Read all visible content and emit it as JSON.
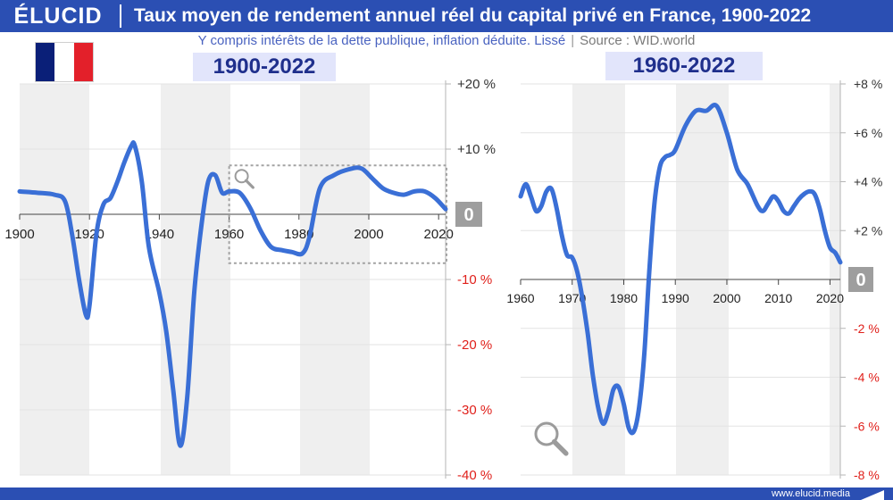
{
  "header": {
    "logo": "ÉLUCID",
    "title": "Taux moyen de rendement annuel réel du capital privé en France, 1900-2022"
  },
  "subtitle": {
    "text": "Y compris intérêts de la dette publique, inflation déduite. Lissé",
    "separator": "|",
    "source": "Source : WID.world"
  },
  "footer": {
    "url": "www.elucid.media"
  },
  "colors": {
    "brand": "#2b4fb3",
    "line": "#3a6fd6",
    "negative_tick": "#e0201b",
    "zero_badge": "#9e9e9e",
    "band": "#efefef"
  },
  "chart_data": [
    {
      "type": "line",
      "label": "1900-2022",
      "x_ticks": [
        "1900",
        "1920",
        "1940",
        "1960",
        "1980",
        "2000",
        "2020"
      ],
      "y_ticks": [
        "+20 %",
        "+10 %",
        "0",
        "-10 %",
        "-20 %",
        "-30 %",
        "-40 %"
      ],
      "xlim": [
        1900,
        2022
      ],
      "ylim": [
        -40,
        20
      ],
      "zero_label": "0",
      "highlight_range": {
        "x": [
          1960,
          2022
        ],
        "y": [
          -7.5,
          7.5
        ]
      },
      "series": [
        {
          "x": [
            1900,
            1905,
            1910,
            1913,
            1915,
            1917,
            1919,
            1920,
            1922,
            1924,
            1926,
            1928,
            1930,
            1932,
            1933,
            1935,
            1937,
            1940,
            1942,
            1944,
            1946,
            1948,
            1950,
            1952,
            1954,
            1956,
            1958,
            1960,
            1963,
            1966,
            1969,
            1972,
            1975,
            1978,
            1981,
            1983,
            1986,
            1990,
            1995,
            1998,
            2001,
            2004,
            2007,
            2010,
            2013,
            2016,
            2019,
            2022
          ],
          "y": [
            3.5,
            3.3,
            3.0,
            2.0,
            -3.0,
            -10.0,
            -15.5,
            -14.0,
            -3.0,
            1.5,
            2.5,
            5.0,
            8.0,
            10.5,
            10.5,
            5.0,
            -5.0,
            -12.0,
            -18.0,
            -27.0,
            -35.5,
            -28.0,
            -12.0,
            -2.0,
            5.0,
            6.0,
            3.3,
            3.5,
            3.3,
            1.0,
            -2.5,
            -5.0,
            -5.5,
            -5.8,
            -6.0,
            -3.5,
            4.0,
            6.0,
            7.0,
            7.0,
            5.5,
            4.0,
            3.3,
            3.0,
            3.5,
            3.5,
            2.5,
            0.8
          ]
        }
      ]
    },
    {
      "type": "line",
      "label": "1960-2022",
      "x_ticks": [
        "1960",
        "1970",
        "1980",
        "1990",
        "2000",
        "2010",
        "2020"
      ],
      "y_ticks": [
        "+8 %",
        "+6 %",
        "+4 %",
        "+2 %",
        "0",
        "-2 %",
        "-4 %",
        "-6 %",
        "-8 %"
      ],
      "xlim": [
        1960,
        2022
      ],
      "ylim": [
        -8,
        8
      ],
      "zero_label": "0",
      "series": [
        {
          "x": [
            1960,
            1961,
            1962,
            1963,
            1964,
            1965,
            1966,
            1967,
            1968,
            1969,
            1970,
            1971,
            1972,
            1973,
            1974,
            1975,
            1976,
            1977,
            1978,
            1979,
            1980,
            1981,
            1982,
            1983,
            1984,
            1985,
            1986,
            1987,
            1988,
            1989,
            1990,
            1992,
            1994,
            1996,
            1998,
            2000,
            2002,
            2004,
            2006,
            2007,
            2008,
            2009,
            2010,
            2011,
            2012,
            2013,
            2014,
            2015,
            2016,
            2017,
            2018,
            2019,
            2020,
            2021,
            2022
          ],
          "y": [
            3.4,
            3.9,
            3.4,
            2.8,
            3.0,
            3.6,
            3.7,
            2.9,
            1.8,
            1.0,
            0.9,
            0.3,
            -0.8,
            -2.2,
            -3.9,
            -5.2,
            -5.9,
            -5.4,
            -4.5,
            -4.4,
            -5.1,
            -6.1,
            -6.2,
            -5.2,
            -3.0,
            0.5,
            3.2,
            4.6,
            5.0,
            5.1,
            5.3,
            6.3,
            6.9,
            6.9,
            7.1,
            6.0,
            4.5,
            3.9,
            3.0,
            2.8,
            3.1,
            3.4,
            3.2,
            2.8,
            2.7,
            3.0,
            3.3,
            3.5,
            3.6,
            3.5,
            2.9,
            2.0,
            1.3,
            1.1,
            0.7
          ]
        }
      ]
    }
  ]
}
